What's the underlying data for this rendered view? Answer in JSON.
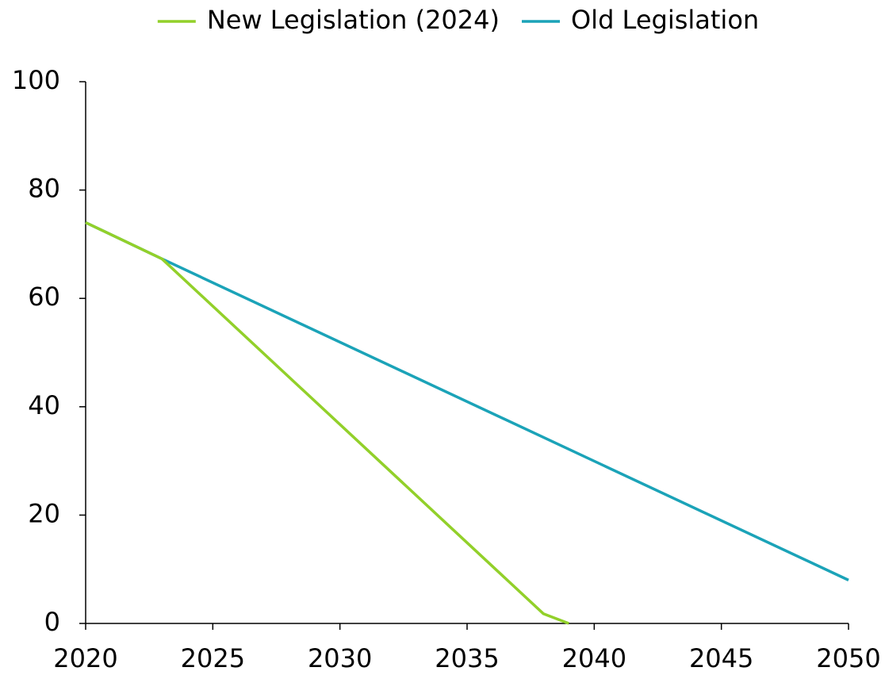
{
  "chart_data": {
    "type": "line",
    "series": [
      {
        "name": "New Legislation (2024)",
        "color": "#92d02a",
        "x": [
          2020,
          2023,
          2038,
          2039
        ],
        "values": [
          74,
          67.3,
          1.8,
          0
        ]
      },
      {
        "name": "Old Legislation",
        "color": "#1ba3b8",
        "x": [
          2020,
          2023,
          2050
        ],
        "values": [
          74,
          67.3,
          8
        ]
      }
    ],
    "xlim": [
      2020,
      2050
    ],
    "xticks": [
      2020,
      2025,
      2030,
      2035,
      2040,
      2045,
      2050
    ],
    "ylim": [
      0,
      100
    ],
    "yticks": [
      0,
      20,
      40,
      60,
      80,
      100
    ],
    "legend": "top",
    "grid": false
  }
}
